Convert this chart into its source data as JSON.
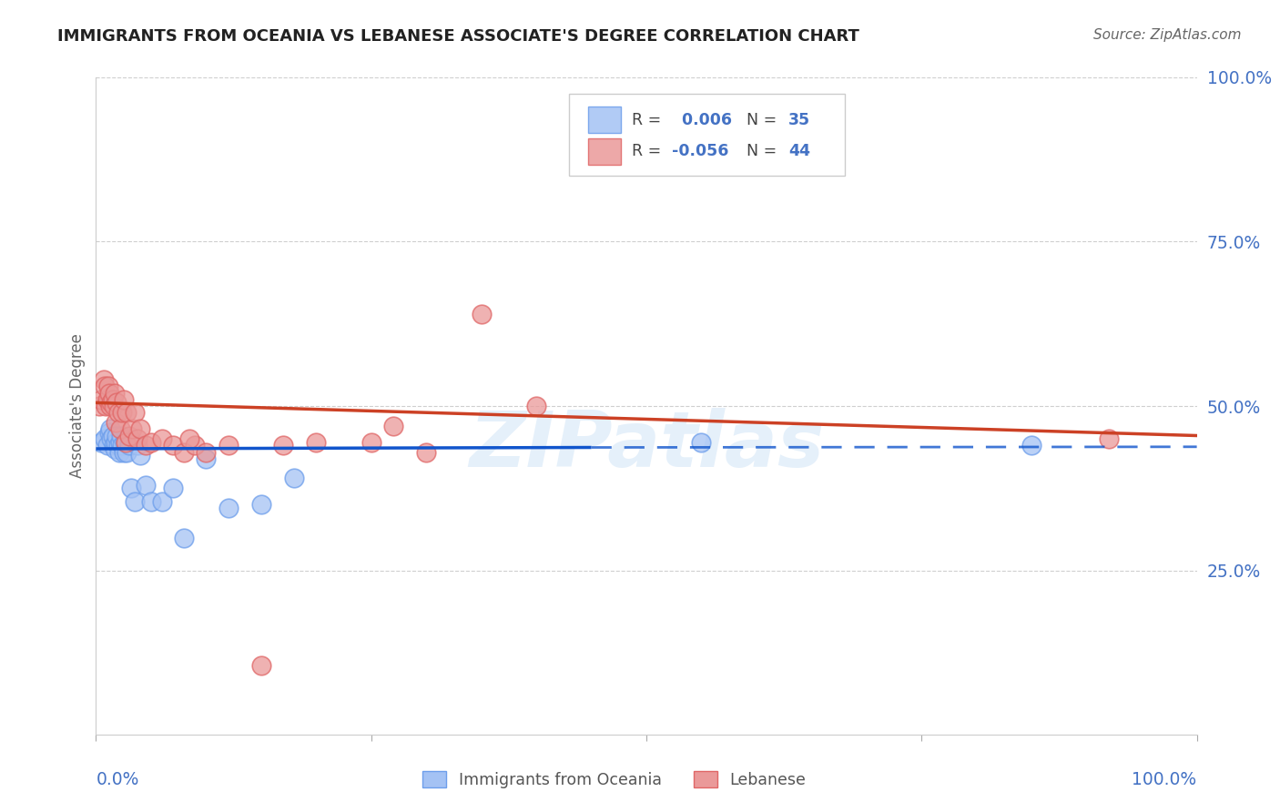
{
  "title": "IMMIGRANTS FROM OCEANIA VS LEBANESE ASSOCIATE'S DEGREE CORRELATION CHART",
  "source": "Source: ZipAtlas.com",
  "ylabel": "Associate's Degree",
  "watermark": "ZIPatlas",
  "blue_R": 0.006,
  "blue_N": 35,
  "pink_R": -0.056,
  "pink_N": 44,
  "blue_color": "#a4c2f4",
  "pink_color": "#ea9999",
  "blue_edge_color": "#6d9eeb",
  "pink_edge_color": "#e06666",
  "blue_line_color": "#1155cc",
  "pink_line_color": "#cc4125",
  "title_color": "#222222",
  "axis_label_color": "#4472c4",
  "grid_color": "#bbbbbb",
  "legend_R_color": "#333333",
  "legend_N_color": "#4472c4",
  "blue_x": [
    0.005,
    0.008,
    0.01,
    0.012,
    0.013,
    0.014,
    0.015,
    0.016,
    0.017,
    0.018,
    0.019,
    0.02,
    0.021,
    0.022,
    0.023,
    0.024,
    0.025,
    0.026,
    0.028,
    0.03,
    0.032,
    0.035,
    0.038,
    0.04,
    0.045,
    0.05,
    0.06,
    0.07,
    0.08,
    0.1,
    0.12,
    0.15,
    0.18,
    0.55,
    0.85
  ],
  "blue_y": [
    0.445,
    0.45,
    0.44,
    0.46,
    0.465,
    0.45,
    0.455,
    0.44,
    0.435,
    0.445,
    0.455,
    0.44,
    0.43,
    0.445,
    0.455,
    0.44,
    0.43,
    0.445,
    0.43,
    0.44,
    0.375,
    0.355,
    0.44,
    0.425,
    0.38,
    0.355,
    0.355,
    0.375,
    0.3,
    0.42,
    0.345,
    0.35,
    0.39,
    0.445,
    0.44
  ],
  "pink_x": [
    0.003,
    0.005,
    0.007,
    0.008,
    0.009,
    0.01,
    0.011,
    0.012,
    0.013,
    0.014,
    0.015,
    0.016,
    0.017,
    0.018,
    0.019,
    0.02,
    0.022,
    0.024,
    0.025,
    0.027,
    0.028,
    0.03,
    0.033,
    0.035,
    0.038,
    0.04,
    0.045,
    0.05,
    0.06,
    0.07,
    0.08,
    0.09,
    0.1,
    0.12,
    0.15,
    0.17,
    0.2,
    0.25,
    0.27,
    0.3,
    0.35,
    0.4,
    0.92,
    0.085
  ],
  "pink_y": [
    0.5,
    0.51,
    0.54,
    0.53,
    0.5,
    0.51,
    0.53,
    0.52,
    0.5,
    0.505,
    0.51,
    0.5,
    0.52,
    0.475,
    0.505,
    0.49,
    0.465,
    0.49,
    0.51,
    0.445,
    0.49,
    0.455,
    0.465,
    0.49,
    0.45,
    0.465,
    0.44,
    0.445,
    0.45,
    0.44,
    0.43,
    0.44,
    0.43,
    0.44,
    0.105,
    0.44,
    0.445,
    0.445,
    0.47,
    0.43,
    0.64,
    0.5,
    0.45,
    0.45
  ],
  "ylim": [
    0,
    1.0
  ],
  "xlim": [
    0,
    1.0
  ],
  "ytick_vals": [
    0.25,
    0.5,
    0.75,
    1.0
  ],
  "ytick_labels": [
    "25.0%",
    "50.0%",
    "75.0%",
    "100.0%"
  ],
  "blue_line_x_solid_end": 0.45,
  "pink_line_x_end": 1.0
}
